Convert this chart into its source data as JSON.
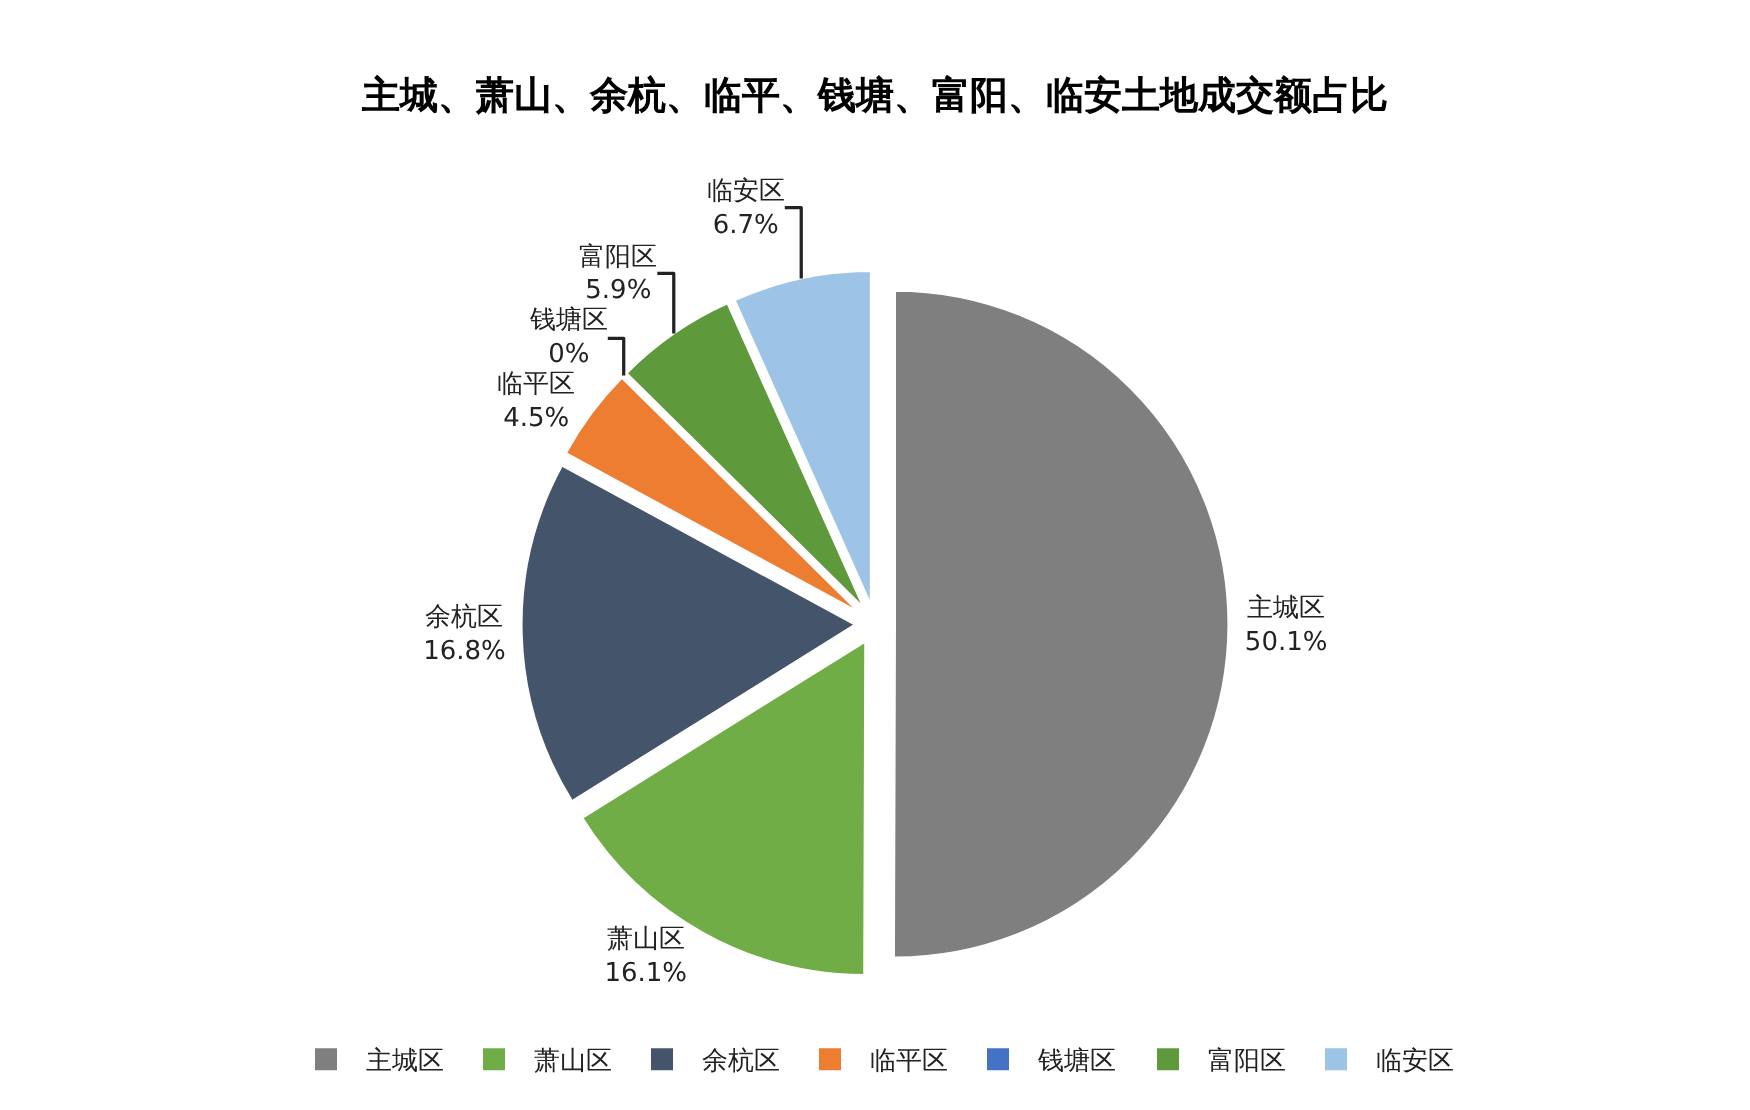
{
  "chart_data": {
    "type": "pie",
    "title": "主城、萧山、余杭、临平、钱塘、富阳、临安土地成交额占比",
    "categories": [
      "主城区",
      "萧山区",
      "余杭区",
      "临平区",
      "钱塘区",
      "富阳区",
      "临安区"
    ],
    "values": [
      50.1,
      16.1,
      16.8,
      4.5,
      0,
      5.9,
      6.7
    ],
    "value_labels": [
      "50.1%",
      "16.1%",
      "16.8%",
      "4.5%",
      "0%",
      "5.9%",
      "6.7%"
    ],
    "colors": [
      "#7f7f7f",
      "#70ad47",
      "#44546a",
      "#ed7d31",
      "#4472c4",
      "#5e9a3c",
      "#9dc3e6"
    ],
    "legend": "bottom"
  }
}
